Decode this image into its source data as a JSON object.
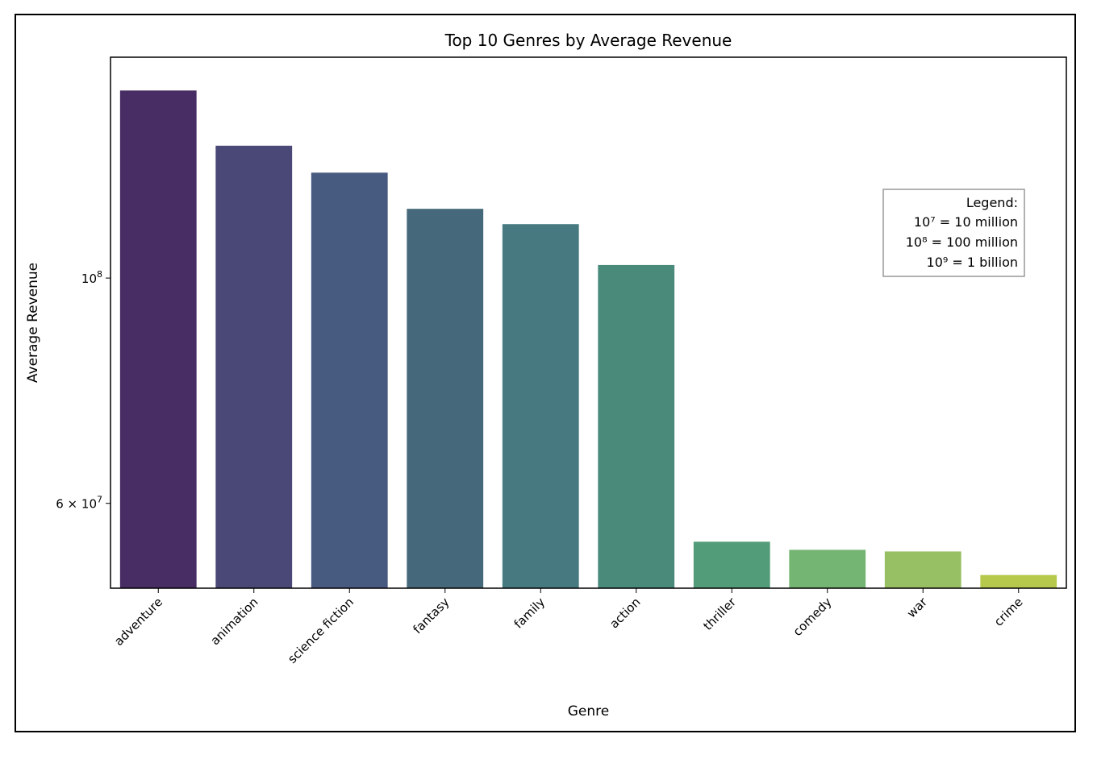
{
  "chart_data": {
    "type": "bar",
    "title": "Top 10 Genres by Average Revenue",
    "xlabel": "Genre",
    "ylabel": "Average Revenue",
    "yscale": "log",
    "ylim": [
      49500000,
      165000000
    ],
    "yticks": [
      {
        "value": 100000000,
        "mantissa": "",
        "base": "10",
        "exp": "8"
      },
      {
        "value": 60000000,
        "mantissa": "6 × ",
        "base": "10",
        "exp": "7"
      }
    ],
    "categories": [
      "adventure",
      "animation",
      "science fiction",
      "fantasy",
      "family",
      "action",
      "thriller",
      "comedy",
      "war",
      "crime"
    ],
    "values": [
      153000000,
      135000000,
      127000000,
      117000000,
      113000000,
      103000000,
      55000000,
      54000000,
      53800000,
      51000000
    ],
    "colors": [
      "#472d63",
      "#494877",
      "#475a80",
      "#45697b",
      "#467a80",
      "#498a7b",
      "#539c7a",
      "#74b573",
      "#97c064",
      "#b7c94d"
    ],
    "grid": false,
    "legend_position": "right",
    "legend": {
      "title": "Legend:",
      "entries": [
        "10⁷ = 10 million",
        "10⁸ = 100 million",
        "10⁹ = 1 billion"
      ]
    }
  }
}
